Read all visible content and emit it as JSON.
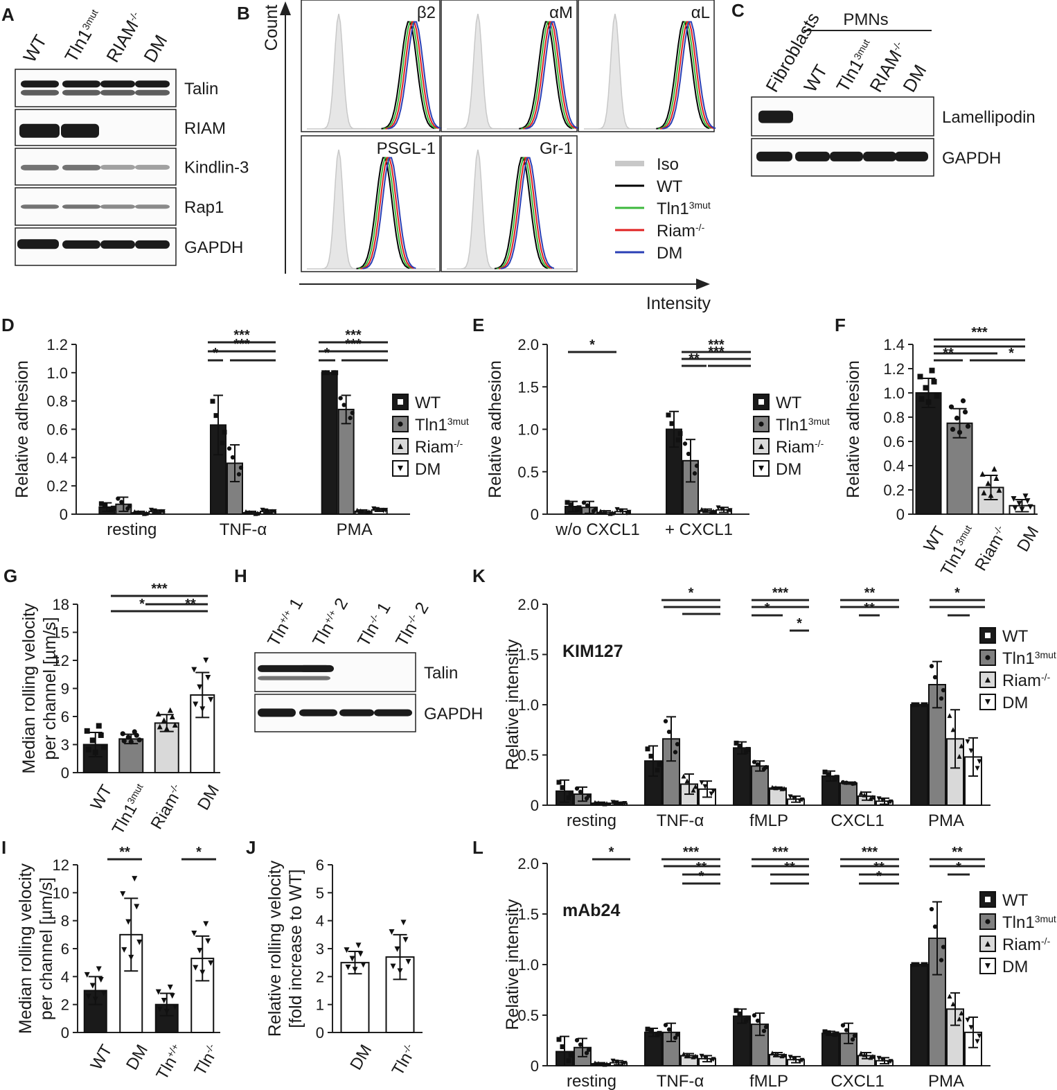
{
  "panels": {
    "A": {
      "letter": "A",
      "lanes": [
        "WT",
        "Tln1",
        "RIAM",
        "DM"
      ],
      "lane_sups": [
        "",
        "3mut",
        "-/-",
        ""
      ],
      "rows": [
        "Talin",
        "RIAM",
        "Kindlin-3",
        "Rap1",
        "GAPDH"
      ]
    },
    "B": {
      "letter": "B",
      "ylabel": "Count",
      "xlabel": "Intensity",
      "markers": [
        "β2",
        "αM",
        "αL",
        "PSGL-1",
        "Gr-1"
      ],
      "legend": [
        {
          "label": "Iso",
          "sup": "",
          "color": "#c8c8c8"
        },
        {
          "label": "WT",
          "sup": "",
          "color": "#000000"
        },
        {
          "label": "Tln1",
          "sup": "3mut",
          "color": "#3cb83c"
        },
        {
          "label": "Riam",
          "sup": "-/-",
          "color": "#e02020"
        },
        {
          "label": "DM",
          "sup": "",
          "color": "#2a3fb5"
        }
      ]
    },
    "C": {
      "letter": "C",
      "group": "PMNs",
      "lanes": [
        "Fibroblasts",
        "WT",
        "Tln1",
        "RIAM",
        "DM"
      ],
      "lane_sups": [
        "",
        "",
        "3mut",
        "-/-",
        ""
      ],
      "rows": [
        "Lamellipodin",
        "GAPDH"
      ]
    },
    "H": {
      "letter": "H",
      "lanes": [
        "Tln",
        "Tln",
        "Tln",
        "Tln"
      ],
      "lane_sups": [
        "+/+",
        "+/+",
        "-/-",
        "-/-"
      ],
      "lane_nums": [
        "1",
        "2",
        "1",
        "2"
      ],
      "rows": [
        "Talin",
        "GAPDH"
      ]
    }
  },
  "legend_groups": {
    "geno": [
      {
        "label": "WT",
        "sup": "",
        "fill": "#1a1a1a",
        "marker": "square"
      },
      {
        "label": "Tln1",
        "sup": "3mut",
        "fill": "#808080",
        "marker": "circle"
      },
      {
        "label": "Riam",
        "sup": "-/-",
        "fill": "#d9d9d9",
        "marker": "triangle"
      },
      {
        "label": "DM",
        "sup": "",
        "fill": "#ffffff",
        "marker": "tri-down"
      }
    ]
  },
  "chart_data": [
    {
      "id": "D",
      "letter": "D",
      "type": "bar",
      "ylabel": "Relative adhesion",
      "ylim": [
        0,
        1.2
      ],
      "yticks": [
        "0",
        "0.2",
        "0.4",
        "0.6",
        "0.8",
        "1.0",
        "1.2"
      ],
      "categories": [
        "resting",
        "TNF-α",
        "PMA"
      ],
      "series": [
        {
          "name": "WT",
          "values": [
            0.05,
            0.63,
            1.0
          ],
          "errors": [
            0.03,
            0.21,
            0.0
          ]
        },
        {
          "name": "Tln1 3mut",
          "values": [
            0.07,
            0.36,
            0.74
          ],
          "errors": [
            0.05,
            0.13,
            0.1
          ]
        },
        {
          "name": "Riam-/-",
          "values": [
            0.01,
            0.01,
            0.02
          ],
          "errors": [
            0.01,
            0.01,
            0.01
          ]
        },
        {
          "name": "DM",
          "values": [
            0.02,
            0.02,
            0.03
          ],
          "errors": [
            0.01,
            0.01,
            0.01
          ]
        }
      ],
      "significance": [
        "*",
        "***",
        "*",
        "***"
      ]
    },
    {
      "id": "E",
      "letter": "E",
      "type": "bar",
      "ylabel": "Relative adhesion",
      "ylim": [
        0,
        2.0
      ],
      "yticks": [
        "0",
        "0.5",
        "1.0",
        "1.5",
        "2.0"
      ],
      "categories": [
        "w/o CXCL1",
        "+ CXCL1"
      ],
      "series": [
        {
          "name": "WT",
          "values": [
            0.09,
            1.0
          ],
          "errors": [
            0.06,
            0.21
          ]
        },
        {
          "name": "Tln1 3mut",
          "values": [
            0.08,
            0.63
          ],
          "errors": [
            0.07,
            0.25
          ]
        },
        {
          "name": "Riam-/-",
          "values": [
            0.02,
            0.04
          ],
          "errors": [
            0.02,
            0.02
          ]
        },
        {
          "name": "DM",
          "values": [
            0.03,
            0.05
          ],
          "errors": [
            0.03,
            0.03
          ]
        }
      ],
      "significance": [
        "*",
        "***",
        "**"
      ]
    },
    {
      "id": "F",
      "letter": "F",
      "type": "bar",
      "ylabel": "Relative adhesion",
      "ylim": [
        0,
        1.4
      ],
      "yticks": [
        "0",
        "0.2",
        "0.4",
        "0.6",
        "0.8",
        "1.0",
        "1.2",
        "1.4"
      ],
      "categories": [
        "WT",
        "Tln1",
        "Riam",
        "DM"
      ],
      "cat_sups": [
        "",
        "3mut",
        "-/-",
        ""
      ],
      "values": [
        1.0,
        0.75,
        0.22,
        0.07
      ],
      "errors": [
        0.12,
        0.12,
        0.1,
        0.05
      ],
      "significance": [
        "***",
        "**",
        "*"
      ]
    },
    {
      "id": "G",
      "letter": "G",
      "type": "bar",
      "ylabel": "Median rolling velocity",
      "ylabel2": "per channel [µm/s]",
      "ylim": [
        0,
        18
      ],
      "yticks": [
        "0",
        "3",
        "6",
        "9",
        "12",
        "15",
        "18"
      ],
      "categories": [
        "WT",
        "Tln1",
        "Riam",
        "DM"
      ],
      "cat_sups": [
        "",
        "3mut",
        "-/-",
        ""
      ],
      "values": [
        3.0,
        3.6,
        5.3,
        8.3
      ],
      "errors": [
        1.3,
        0.5,
        0.9,
        2.4
      ],
      "significance": [
        "***",
        "*",
        "**"
      ]
    },
    {
      "id": "I",
      "letter": "I",
      "type": "bar",
      "ylabel": "Median rolling velocity",
      "ylabel2": "per channel [µm/s]",
      "ylim": [
        0,
        12
      ],
      "yticks": [
        "0",
        "2",
        "4",
        "6",
        "8",
        "10",
        "12"
      ],
      "categories": [
        "WT",
        "DM",
        "Tln",
        "Tln"
      ],
      "cat_sups": [
        "",
        "",
        "+/+",
        "-/-"
      ],
      "values": [
        3.0,
        7.0,
        2.0,
        5.3
      ],
      "errors": [
        1.0,
        2.6,
        0.8,
        1.6
      ],
      "significance": [
        "**",
        "*"
      ]
    },
    {
      "id": "J",
      "letter": "J",
      "type": "bar",
      "ylabel": "Relative rolling velocity",
      "ylabel2": "[fold increase to WT]",
      "ylim": [
        0,
        6
      ],
      "yticks": [
        "0",
        "1",
        "2",
        "3",
        "4",
        "5",
        "6"
      ],
      "categories": [
        "DM",
        "Tln"
      ],
      "cat_sups": [
        "",
        "-/-"
      ],
      "values": [
        2.5,
        2.7
      ],
      "errors": [
        0.4,
        0.8
      ]
    },
    {
      "id": "K",
      "letter": "K",
      "type": "bar",
      "ylabel": "Relative intensity",
      "inset": "KIM127",
      "ylim": [
        0,
        2.0
      ],
      "yticks": [
        "0",
        "0.5",
        "1.0",
        "1.5",
        "2.0"
      ],
      "categories": [
        "resting",
        "TNF-α",
        "fMLP",
        "CXCL1",
        "PMA"
      ],
      "series": [
        {
          "name": "WT",
          "values": [
            0.14,
            0.44,
            0.57,
            0.29,
            1.0
          ],
          "errors": [
            0.11,
            0.15,
            0.06,
            0.05,
            0.0
          ]
        },
        {
          "name": "Tln1 3mut",
          "values": [
            0.11,
            0.66,
            0.39,
            0.22,
            1.2
          ],
          "errors": [
            0.07,
            0.22,
            0.05,
            0.01,
            0.23
          ]
        },
        {
          "name": "Riam-/-",
          "values": [
            0.02,
            0.21,
            0.17,
            0.09,
            0.66
          ],
          "errors": [
            0.01,
            0.1,
            0.01,
            0.04,
            0.29
          ]
        },
        {
          "name": "DM",
          "values": [
            0.02,
            0.16,
            0.06,
            0.04,
            0.48
          ],
          "errors": [
            0.01,
            0.08,
            0.03,
            0.03,
            0.19
          ]
        }
      ],
      "significance": [
        "*",
        "***",
        "**",
        "*",
        "***",
        "**",
        "**",
        "*"
      ]
    },
    {
      "id": "L",
      "letter": "L",
      "type": "bar",
      "ylabel": "Relative intensity",
      "inset": "mAb24",
      "ylim": [
        0,
        2.0
      ],
      "yticks": [
        "0",
        "0.5",
        "1.0",
        "1.5",
        "2.0"
      ],
      "categories": [
        "resting",
        "TNF-α",
        "fMLP",
        "CXCL1",
        "PMA"
      ],
      "series": [
        {
          "name": "WT",
          "values": [
            0.14,
            0.33,
            0.49,
            0.32,
            1.0
          ],
          "errors": [
            0.15,
            0.04,
            0.07,
            0.02,
            0.0
          ]
        },
        {
          "name": "Tln1 3mut",
          "values": [
            0.18,
            0.33,
            0.41,
            0.32,
            1.26
          ],
          "errors": [
            0.09,
            0.09,
            0.11,
            0.1,
            0.36
          ]
        },
        {
          "name": "Riam-/-",
          "values": [
            0.02,
            0.1,
            0.11,
            0.1,
            0.56
          ],
          "errors": [
            0.01,
            0.02,
            0.02,
            0.03,
            0.16
          ]
        },
        {
          "name": "DM",
          "values": [
            0.03,
            0.07,
            0.06,
            0.05,
            0.33
          ],
          "errors": [
            0.02,
            0.03,
            0.03,
            0.03,
            0.15
          ]
        }
      ],
      "significance": [
        "*",
        "***",
        "**",
        "*",
        "***",
        "**",
        "***",
        "**",
        "*",
        "**",
        "*"
      ]
    }
  ]
}
